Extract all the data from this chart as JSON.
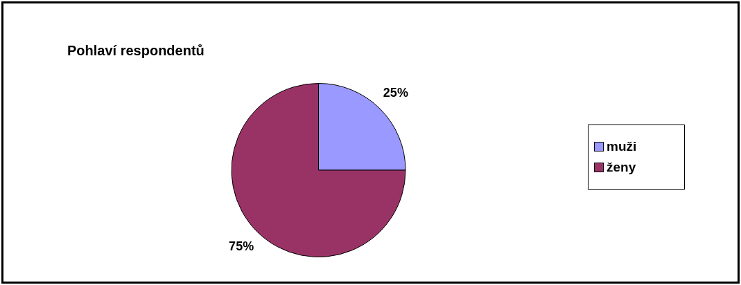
{
  "chart_data": {
    "type": "pie",
    "title": "Pohlaví respondentů",
    "categories": [
      "muži",
      "ženy"
    ],
    "values": [
      25,
      75
    ],
    "colors": [
      "#9999ff",
      "#993366"
    ],
    "value_labels": [
      "25%",
      "75%"
    ],
    "legend": "right"
  }
}
